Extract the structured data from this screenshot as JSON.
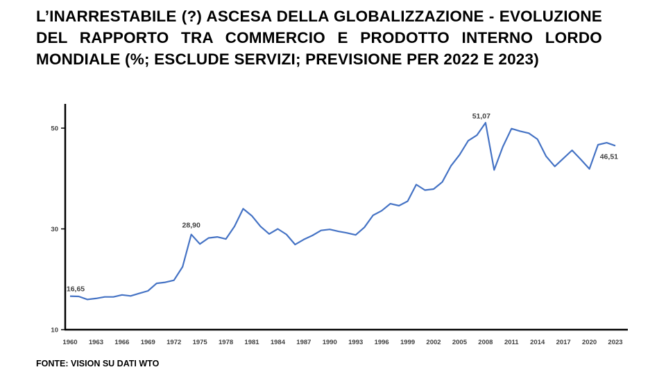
{
  "title": "L’INARRESTABILE (?) ASCESA DELLA GLOBALIZZAZIONE - EVOLUZIONE DEL RAPPORTO TRA COMMERCIO E PRODOTTO INTERNO LORDO MONDIALE (%; ESCLUDE SERVIZI; PREVISIONE PER 2022 E 2023)",
  "source": "FONTE: VISION SU DATI WTO",
  "chart_data": {
    "type": "line",
    "title": "",
    "xlabel": "",
    "ylabel": "",
    "ylim": [
      10,
      55
    ],
    "yticks": [
      10,
      30,
      50
    ],
    "ytick_labels": [
      "10",
      "30",
      "50"
    ],
    "xticks": [
      1960,
      1963,
      1966,
      1969,
      1972,
      1975,
      1978,
      1981,
      1984,
      1987,
      1990,
      1993,
      1996,
      1999,
      2002,
      2005,
      2008,
      2011,
      2014,
      2017,
      2020,
      2023
    ],
    "grid": false,
    "line_color": "#4472C4",
    "x": [
      1960,
      1961,
      1962,
      1963,
      1964,
      1965,
      1966,
      1967,
      1968,
      1969,
      1970,
      1971,
      1972,
      1973,
      1974,
      1975,
      1976,
      1977,
      1978,
      1979,
      1980,
      1981,
      1982,
      1983,
      1984,
      1985,
      1986,
      1987,
      1988,
      1989,
      1990,
      1991,
      1992,
      1993,
      1994,
      1995,
      1996,
      1997,
      1998,
      1999,
      2000,
      2001,
      2002,
      2003,
      2004,
      2005,
      2006,
      2007,
      2008,
      2009,
      2010,
      2011,
      2012,
      2013,
      2014,
      2015,
      2016,
      2017,
      2018,
      2019,
      2020,
      2021,
      2022,
      2023
    ],
    "series": [
      {
        "values": [
          16.65,
          16.6,
          16.0,
          16.2,
          16.5,
          16.5,
          16.9,
          16.7,
          17.2,
          17.7,
          19.2,
          19.4,
          19.8,
          22.5,
          28.9,
          27.0,
          28.2,
          28.4,
          28.0,
          30.5,
          34.0,
          32.6,
          30.5,
          29.0,
          30.0,
          28.9,
          26.9,
          27.9,
          28.7,
          29.7,
          29.9,
          29.5,
          29.2,
          28.8,
          30.3,
          32.7,
          33.6,
          35.0,
          34.6,
          35.5,
          38.8,
          37.7,
          37.9,
          39.3,
          42.5,
          44.7,
          47.5,
          48.6,
          51.07,
          41.7,
          46.3,
          49.9,
          49.4,
          49.0,
          47.8,
          44.4,
          42.4,
          44.0,
          45.6,
          43.8,
          41.9,
          46.7,
          47.1,
          46.51
        ]
      }
    ],
    "data_labels": [
      {
        "x": 1960,
        "text": "16,65"
      },
      {
        "x": 1974,
        "text": "28,90"
      },
      {
        "x": 2008,
        "text": "51,07"
      },
      {
        "x": 2023,
        "text": "46,51"
      }
    ]
  }
}
